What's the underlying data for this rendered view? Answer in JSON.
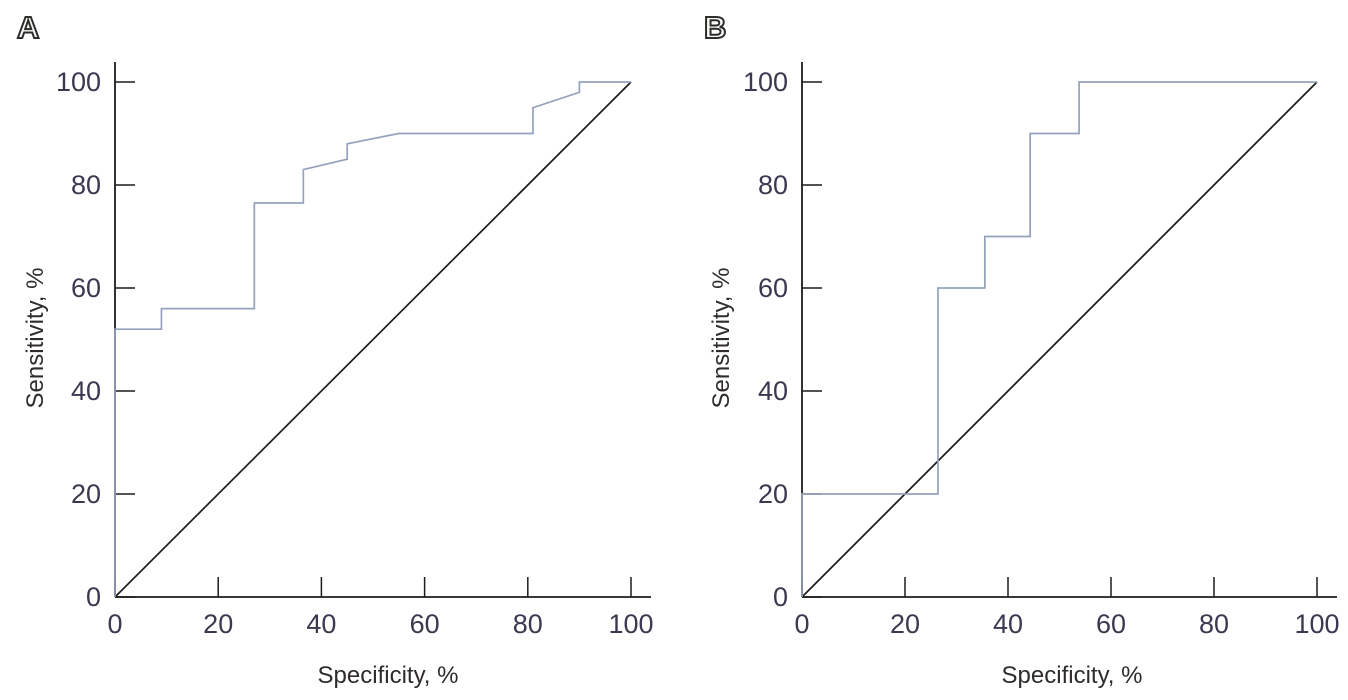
{
  "figure": {
    "background": "#ffffff",
    "description": "Two-panel ROC curve figure"
  },
  "style": {
    "curve_color": "#94a2bd",
    "reference_color": "#1c1c1c",
    "axis_color": "#1c1c1c",
    "tick_label_color": "#3a3950",
    "title_color": "#2f2b2e"
  },
  "chart_data": [
    {
      "type": "line",
      "panel_label": "A",
      "title": "",
      "xlabel": "Specificity, %",
      "ylabel": "Sensitivity, %",
      "xlim": [
        0,
        100
      ],
      "ylim": [
        0,
        100
      ],
      "x_ticks": [
        0,
        20,
        40,
        60,
        80,
        100
      ],
      "y_ticks": [
        0,
        20,
        40,
        60,
        80,
        100
      ],
      "grid": false,
      "legend": "none",
      "series": [
        {
          "name": "ROC curve",
          "color": "#94a2bd",
          "x": [
            0,
            0,
            9,
            9,
            27,
            27,
            36.5,
            36.5,
            45,
            45,
            55,
            81,
            81,
            90,
            90,
            100
          ],
          "y": [
            0,
            52,
            52,
            56,
            56,
            76.5,
            76.5,
            83,
            85,
            88,
            90,
            90,
            95,
            98,
            100,
            100
          ]
        },
        {
          "name": "Reference diagonal",
          "color": "#1c1c1c",
          "x": [
            0,
            100
          ],
          "y": [
            0,
            100
          ]
        }
      ]
    },
    {
      "type": "line",
      "panel_label": "B",
      "title": "",
      "xlabel": "Specificity, %",
      "ylabel": "Sensitivity, %",
      "xlim": [
        0,
        100
      ],
      "ylim": [
        0,
        100
      ],
      "x_ticks": [
        0,
        20,
        40,
        60,
        80,
        100
      ],
      "y_ticks": [
        0,
        20,
        40,
        60,
        80,
        100
      ],
      "grid": false,
      "legend": "none",
      "series": [
        {
          "name": "ROC curve",
          "color": "#94a2bd",
          "x": [
            0,
            0,
            26.4,
            26.4,
            35.5,
            35.5,
            44.3,
            44.3,
            53.8,
            53.8,
            100
          ],
          "y": [
            0,
            20,
            20,
            60,
            60,
            70,
            70,
            90,
            90,
            100,
            100
          ]
        },
        {
          "name": "Reference diagonal",
          "color": "#1c1c1c",
          "x": [
            0,
            100
          ],
          "y": [
            0,
            100
          ]
        }
      ]
    }
  ]
}
